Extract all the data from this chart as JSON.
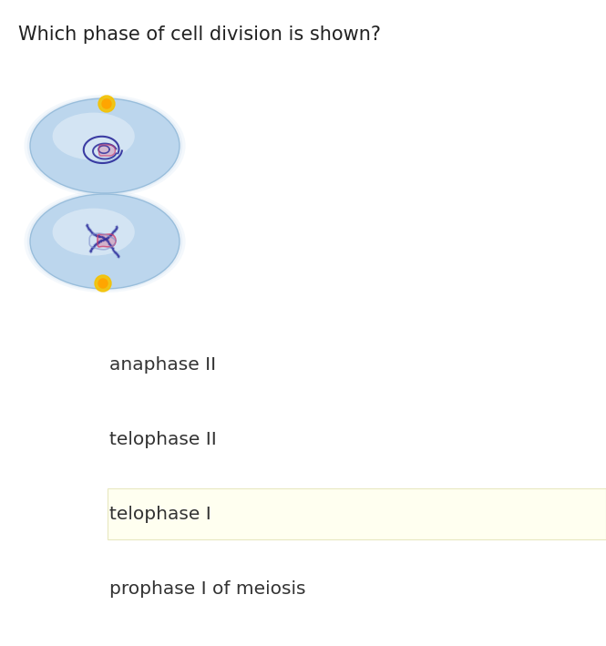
{
  "title": "Which phase of cell division is shown?",
  "title_fontsize": 15,
  "title_color": "#222222",
  "bg_color": "#ffffff",
  "options": [
    {
      "text": "anaphase II",
      "highlighted": false
    },
    {
      "text": "telophase II",
      "highlighted": false
    },
    {
      "text": "telophase I",
      "highlighted": true
    },
    {
      "text": "prophase I of meiosis",
      "highlighted": false
    }
  ],
  "option_fontsize": 14.5,
  "option_text_color": "#333333",
  "highlight_color": "#fffff0",
  "highlight_border": "#e8e8c0",
  "cell_color": "#b8d4ec",
  "cell_edge_color": "#90b8d8",
  "centrosome_color": "#f5c200",
  "centrosome_inner": "#ffa500",
  "chrom_blue": "#2a2a9a",
  "chrom_pink": "#d04070",
  "chrom_light_blue": "#8090cc"
}
